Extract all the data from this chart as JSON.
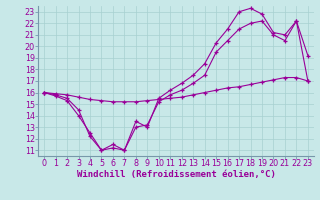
{
  "background_color": "#c8e8e8",
  "line_color": "#990099",
  "grid_color": "#a8d0d0",
  "xlabel": "Windchill (Refroidissement éolien,°C)",
  "xlabel_fontsize": 6.5,
  "tick_fontsize": 5.8,
  "xlim": [
    -0.5,
    23.5
  ],
  "ylim": [
    10.5,
    23.5
  ],
  "yticks": [
    11,
    12,
    13,
    14,
    15,
    16,
    17,
    18,
    19,
    20,
    21,
    22,
    23
  ],
  "xticks": [
    0,
    1,
    2,
    3,
    4,
    5,
    6,
    7,
    8,
    9,
    10,
    11,
    12,
    13,
    14,
    15,
    16,
    17,
    18,
    19,
    20,
    21,
    22,
    23
  ],
  "curve1_x": [
    0,
    1,
    2,
    3,
    4,
    5,
    6,
    7,
    8,
    9,
    10,
    11,
    12,
    13,
    14,
    15,
    16,
    17,
    18,
    19,
    20,
    21,
    22,
    23
  ],
  "curve1_y": [
    16.0,
    15.8,
    15.5,
    14.5,
    12.2,
    11.0,
    11.5,
    11.0,
    13.0,
    13.2,
    15.2,
    15.8,
    16.2,
    16.8,
    17.5,
    19.5,
    20.5,
    21.5,
    22.0,
    22.2,
    21.0,
    20.5,
    22.2,
    17.0
  ],
  "curve2_x": [
    0,
    1,
    2,
    3,
    4,
    5,
    6,
    7,
    8,
    9,
    10,
    11,
    12,
    13,
    14,
    15,
    16,
    17,
    18,
    19,
    20,
    21,
    22,
    23
  ],
  "curve2_y": [
    16.0,
    15.7,
    15.3,
    14.0,
    12.5,
    11.0,
    11.2,
    11.0,
    13.5,
    13.0,
    15.5,
    16.2,
    16.8,
    17.5,
    18.5,
    20.3,
    21.5,
    23.0,
    23.3,
    22.8,
    21.2,
    21.0,
    22.2,
    19.2
  ],
  "curve3_x": [
    0,
    1,
    2,
    3,
    4,
    5,
    6,
    7,
    8,
    9,
    10,
    11,
    12,
    13,
    14,
    15,
    16,
    17,
    18,
    19,
    20,
    21,
    22,
    23
  ],
  "curve3_y": [
    16.0,
    15.9,
    15.8,
    15.6,
    15.4,
    15.3,
    15.2,
    15.2,
    15.2,
    15.3,
    15.4,
    15.5,
    15.6,
    15.8,
    16.0,
    16.2,
    16.4,
    16.5,
    16.7,
    16.9,
    17.1,
    17.3,
    17.3,
    17.0
  ]
}
